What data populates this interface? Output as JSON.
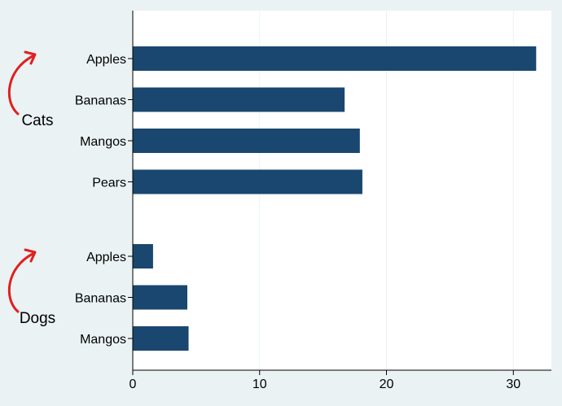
{
  "chart_data": {
    "type": "bar",
    "orientation": "horizontal",
    "colors": {
      "background": "#eaf2f3",
      "plot_background": "#ffffff",
      "bar": "#1a476f",
      "grid": "#eaf2f3",
      "axis": "#000000",
      "annotation": "#e02020"
    },
    "xlim": [
      0,
      33
    ],
    "x_ticks": [
      0,
      10,
      20,
      30
    ],
    "grid": true,
    "groups": [
      {
        "name": "Cats",
        "categories": [
          "Apples",
          "Bananas",
          "Mangos",
          "Pears"
        ],
        "values": [
          31.8,
          16.7,
          17.9,
          18.1
        ]
      },
      {
        "name": "Dogs",
        "categories": [
          "Apples",
          "Bananas",
          "Mangos"
        ],
        "values": [
          1.6,
          4.3,
          4.4
        ]
      }
    ]
  }
}
